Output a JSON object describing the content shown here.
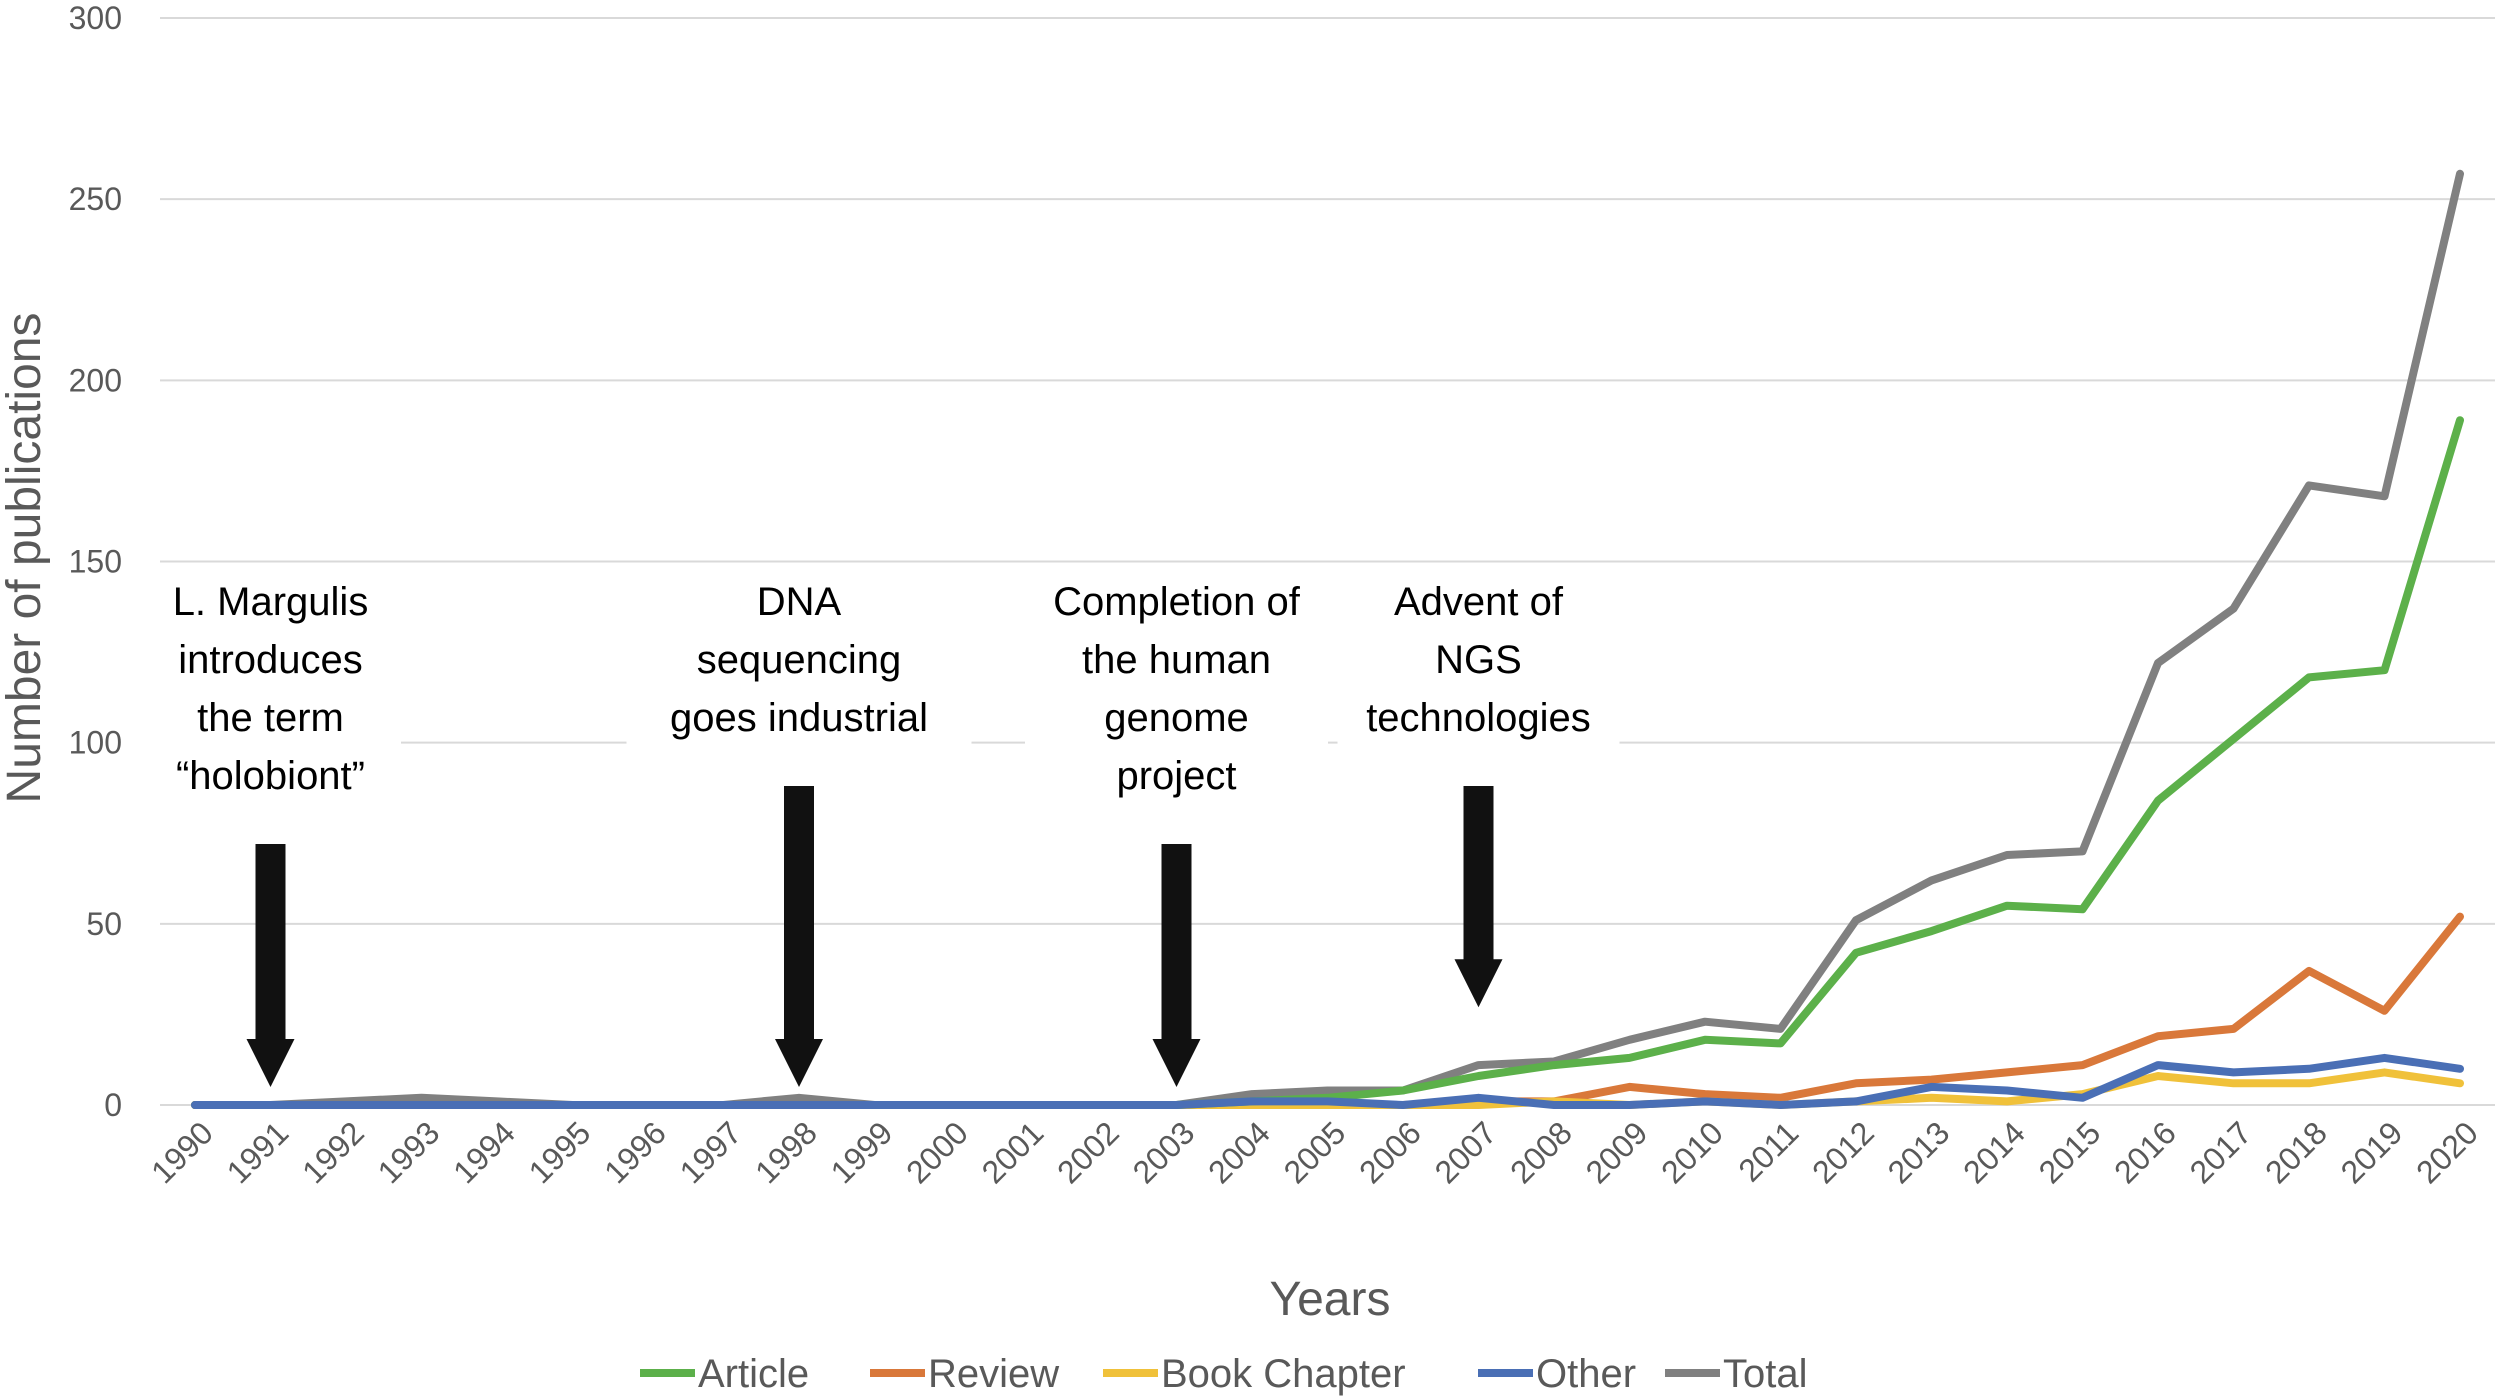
{
  "chart_data": {
    "type": "line",
    "title": "",
    "xlabel": "Years",
    "ylabel": "Number of publications",
    "ylim": [
      0,
      300
    ],
    "yticks": [
      0,
      50,
      100,
      150,
      200,
      250,
      300
    ],
    "grid": true,
    "legend_position": "bottom",
    "categories": [
      "1990",
      "1991",
      "1992",
      "1993",
      "1994",
      "1995",
      "1996",
      "1997",
      "1998",
      "1999",
      "2000",
      "2001",
      "2002",
      "2003",
      "2004",
      "2005",
      "2006",
      "2007",
      "2008",
      "2009",
      "2010",
      "2011",
      "2012",
      "2013",
      "2014",
      "2015",
      "2016",
      "2017",
      "2018",
      "2019",
      "2020"
    ],
    "series": [
      {
        "name": "Article",
        "color": "#5cb04a",
        "values": [
          0,
          0,
          0,
          0,
          0,
          0,
          0,
          0,
          0,
          0,
          0,
          0,
          0,
          0,
          1,
          2,
          4,
          8,
          11,
          13,
          18,
          17,
          42,
          48,
          55,
          54,
          84,
          101,
          118,
          120,
          189
        ]
      },
      {
        "name": "Review",
        "color": "#d9783a",
        "values": [
          0,
          0,
          0,
          0,
          0,
          0,
          0,
          0,
          0,
          0,
          0,
          0,
          0,
          0,
          0,
          0,
          0,
          1,
          1,
          5,
          3,
          2,
          6,
          7,
          9,
          11,
          19,
          21,
          37,
          26,
          52
        ]
      },
      {
        "name": "Book Chapter",
        "color": "#f0c13a",
        "values": [
          0,
          0,
          0,
          0,
          0,
          0,
          0,
          0,
          0,
          0,
          0,
          0,
          0,
          0,
          0,
          0,
          0,
          0,
          1,
          0,
          1,
          0,
          1,
          2,
          1,
          3,
          8,
          6,
          6,
          9,
          6
        ]
      },
      {
        "name": "Other",
        "color": "#4a6fb5",
        "values": [
          0,
          0,
          0,
          0,
          0,
          0,
          0,
          0,
          0,
          0,
          0,
          0,
          0,
          0,
          1,
          1,
          0,
          2,
          0,
          0,
          1,
          0,
          1,
          5,
          4,
          2,
          11,
          9,
          10,
          13,
          10
        ]
      },
      {
        "name": "Total",
        "color": "#808080",
        "values": [
          0,
          0,
          1,
          2,
          1,
          0,
          0,
          0,
          2,
          0,
          0,
          0,
          0,
          0,
          3,
          4,
          4,
          11,
          12,
          18,
          23,
          21,
          51,
          62,
          69,
          70,
          122,
          137,
          171,
          168,
          257
        ]
      }
    ],
    "annotations": [
      {
        "year": "1991",
        "arrow_value": 0,
        "lines": [
          "L. Margulis",
          "introduces",
          "the term",
          "“holobiont”"
        ]
      },
      {
        "year": "1998",
        "arrow_value": 0,
        "lines": [
          "DNA",
          "sequencing",
          "goes industrial"
        ]
      },
      {
        "year": "2003",
        "arrow_value": 0,
        "lines": [
          "Completion of",
          "the human",
          "genome",
          "project"
        ]
      },
      {
        "year": "2007",
        "arrow_value": 22,
        "lines": [
          "Advent of",
          "NGS",
          "technologies"
        ]
      }
    ]
  }
}
